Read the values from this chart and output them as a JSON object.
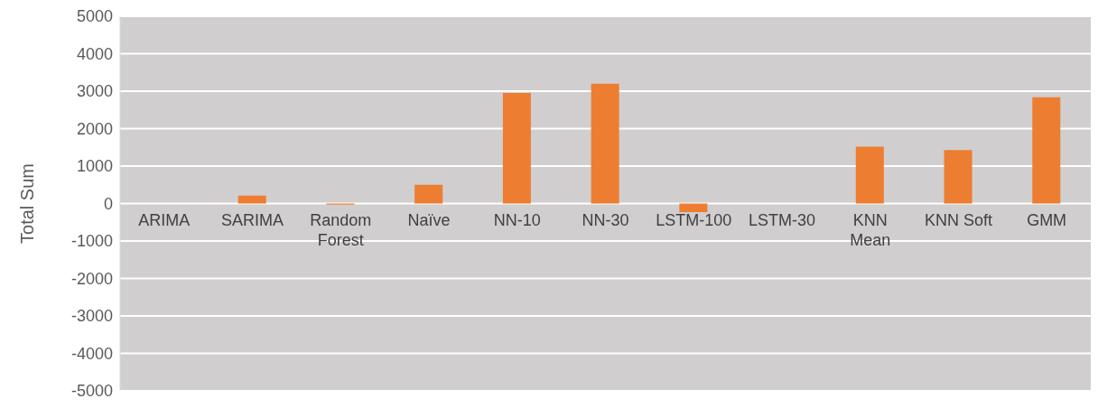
{
  "chart_data": {
    "type": "bar",
    "ylabel": "Total Sum",
    "categories": [
      "ARIMA",
      "SARIMA",
      "Random Forest",
      "Naïve",
      "NN-10",
      "NN-30",
      "LSTM-100",
      "LSTM-30",
      "KNN Mean",
      "KNN Soft",
      "GMM"
    ],
    "values": [
      0,
      210,
      -30,
      500,
      2950,
      3200,
      -230,
      0,
      1520,
      1430,
      2840
    ],
    "color": "#ed7d31",
    "ylim": [
      -5000,
      5000
    ],
    "yticks": [
      -5000,
      -4000,
      -3000,
      -2000,
      -1000,
      0,
      1000,
      2000,
      3000,
      4000,
      5000
    ],
    "grid": "y"
  }
}
